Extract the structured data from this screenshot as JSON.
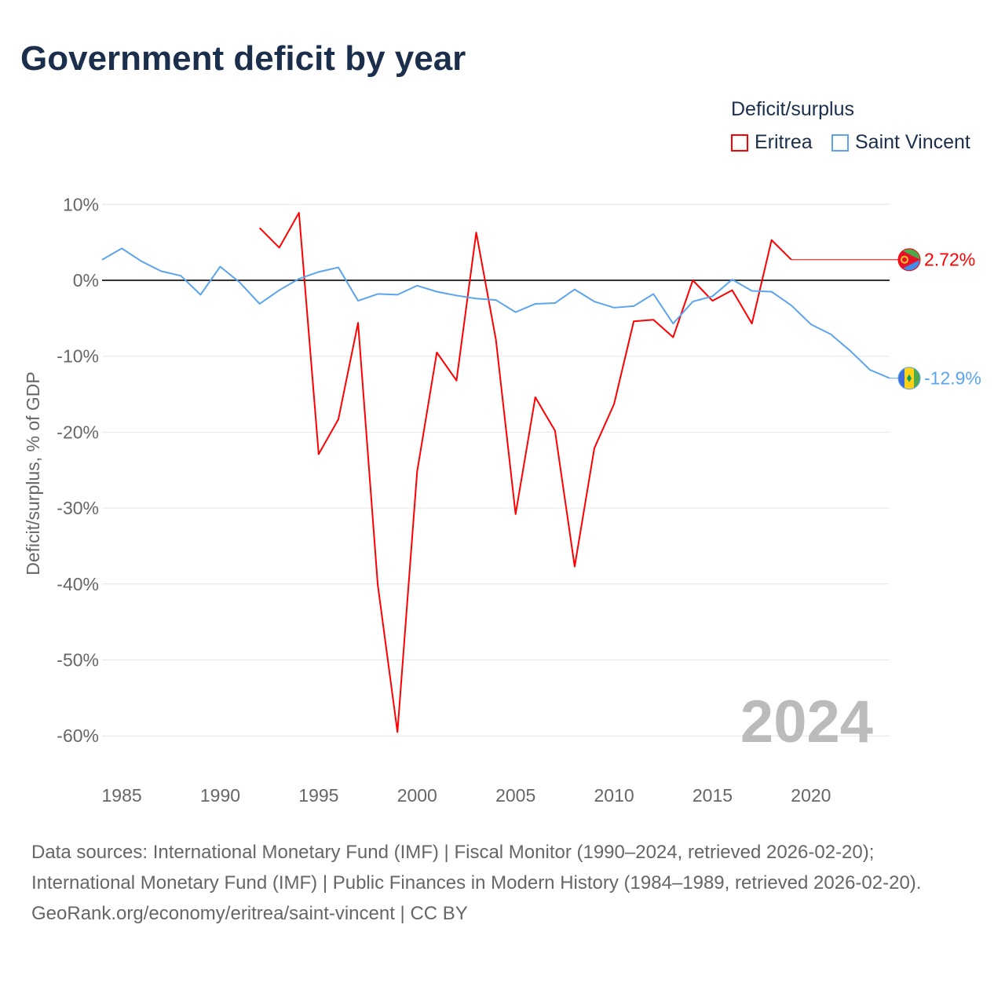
{
  "title": "Government deficit by year",
  "legend": {
    "title": "Deficit/surplus",
    "items": [
      "Eritrea",
      "Saint Vincent"
    ]
  },
  "source_lines": [
    "Data sources: International Monetary Fund (IMF) | Fiscal Monitor (1990–2024, retrieved 2026-02-20); International Monetary Fund (IMF) | Public Finances in Modern History (1984–1989, retrieved 2026-02-20).",
    "GeoRank.org/economy/eritrea/saint-vincent | CC BY"
  ],
  "chart_data": {
    "type": "line",
    "title": "Government deficit by year",
    "ylabel": "Deficit/surplus, % of GDP",
    "xlabel": "",
    "ylim": [
      -65,
      12
    ],
    "xlim": [
      1984,
      2024
    ],
    "yticks": [
      10,
      0,
      -10,
      -20,
      -30,
      -40,
      -50,
      -60
    ],
    "ytick_labels": [
      "10%",
      "0%",
      "-10%",
      "-20%",
      "-30%",
      "-40%",
      "-50%",
      "-60%"
    ],
    "xticks": [
      1985,
      1990,
      1995,
      2000,
      2005,
      2010,
      2015,
      2020
    ],
    "year_label": "2024",
    "series": [
      {
        "name": "Eritrea",
        "color": "#ff0000",
        "end_label": "2.72%",
        "x": [
          1992,
          1993,
          1994,
          1995,
          1996,
          1997,
          1998,
          1999,
          2000,
          2001,
          2002,
          2003,
          2004,
          2005,
          2006,
          2007,
          2008,
          2009,
          2010,
          2011,
          2012,
          2013,
          2014,
          2015,
          2016,
          2017,
          2018,
          2019
        ],
        "values": [
          6.9,
          4.3,
          8.9,
          -22.9,
          -18.3,
          -5.6,
          -40.1,
          -59.5,
          -25.2,
          -9.5,
          -13.2,
          6.3,
          -7.8,
          -30.8,
          -15.4,
          -19.8,
          -37.7,
          -22.1,
          -16.3,
          -5.4,
          -5.2,
          -7.5,
          0.0,
          -2.7,
          -1.3,
          -5.7,
          5.3,
          2.72
        ],
        "latest": 2.72
      },
      {
        "name": "Saint Vincent",
        "color": "#5ba4ee",
        "end_label": "-12.9%",
        "x": [
          1984,
          1985,
          1986,
          1987,
          1988,
          1989,
          1990,
          1991,
          1992,
          1993,
          1994,
          1995,
          1996,
          1997,
          1998,
          1999,
          2000,
          2001,
          2002,
          2003,
          2004,
          2005,
          2006,
          2007,
          2008,
          2009,
          2010,
          2011,
          2012,
          2013,
          2014,
          2015,
          2016,
          2017,
          2018,
          2019,
          2020,
          2021,
          2022,
          2023,
          2024
        ],
        "values": [
          2.7,
          4.2,
          2.5,
          1.2,
          0.6,
          -1.9,
          1.8,
          -0.3,
          -3.1,
          -1.3,
          0.2,
          1.1,
          1.7,
          -2.7,
          -1.8,
          -1.9,
          -0.7,
          -1.5,
          -2.0,
          -2.4,
          -2.6,
          -4.2,
          -3.1,
          -3.0,
          -1.2,
          -2.8,
          -3.6,
          -3.4,
          -1.8,
          -5.7,
          -2.8,
          -2.1,
          0.1,
          -1.4,
          -1.5,
          -3.3,
          -5.8,
          -7.1,
          -9.3,
          -11.8,
          -12.9
        ],
        "latest": -12.9
      }
    ]
  }
}
